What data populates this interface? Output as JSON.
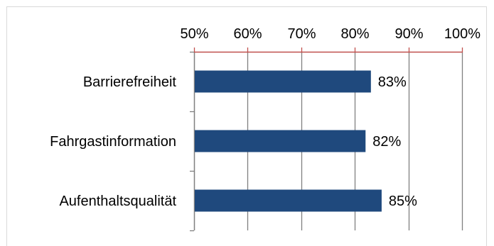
{
  "chart_data": {
    "type": "bar",
    "orientation": "horizontal",
    "title": "",
    "xlabel": "",
    "ylabel": "",
    "xlim": [
      50,
      100
    ],
    "x_ticks": [
      "50%",
      "60%",
      "70%",
      "80%",
      "90%",
      "100%"
    ],
    "x_tick_values": [
      50,
      60,
      70,
      80,
      90,
      100
    ],
    "x_axis_position": "top",
    "grid": "vertical",
    "legend": "none",
    "categories": [
      "Barrierefreiheit",
      "Fahrgastinformation",
      "Aufenthaltsqualität"
    ],
    "series": [
      {
        "values": [
          83,
          82,
          85
        ],
        "labels": [
          "83%",
          "82%",
          "85%"
        ],
        "color": "#1f497d"
      }
    ],
    "colors": {
      "bar": "#1f497d",
      "grid": "#808080",
      "axis_line": "#c0504d",
      "frame": "#d9d9d9",
      "background": "#ffffff"
    }
  }
}
